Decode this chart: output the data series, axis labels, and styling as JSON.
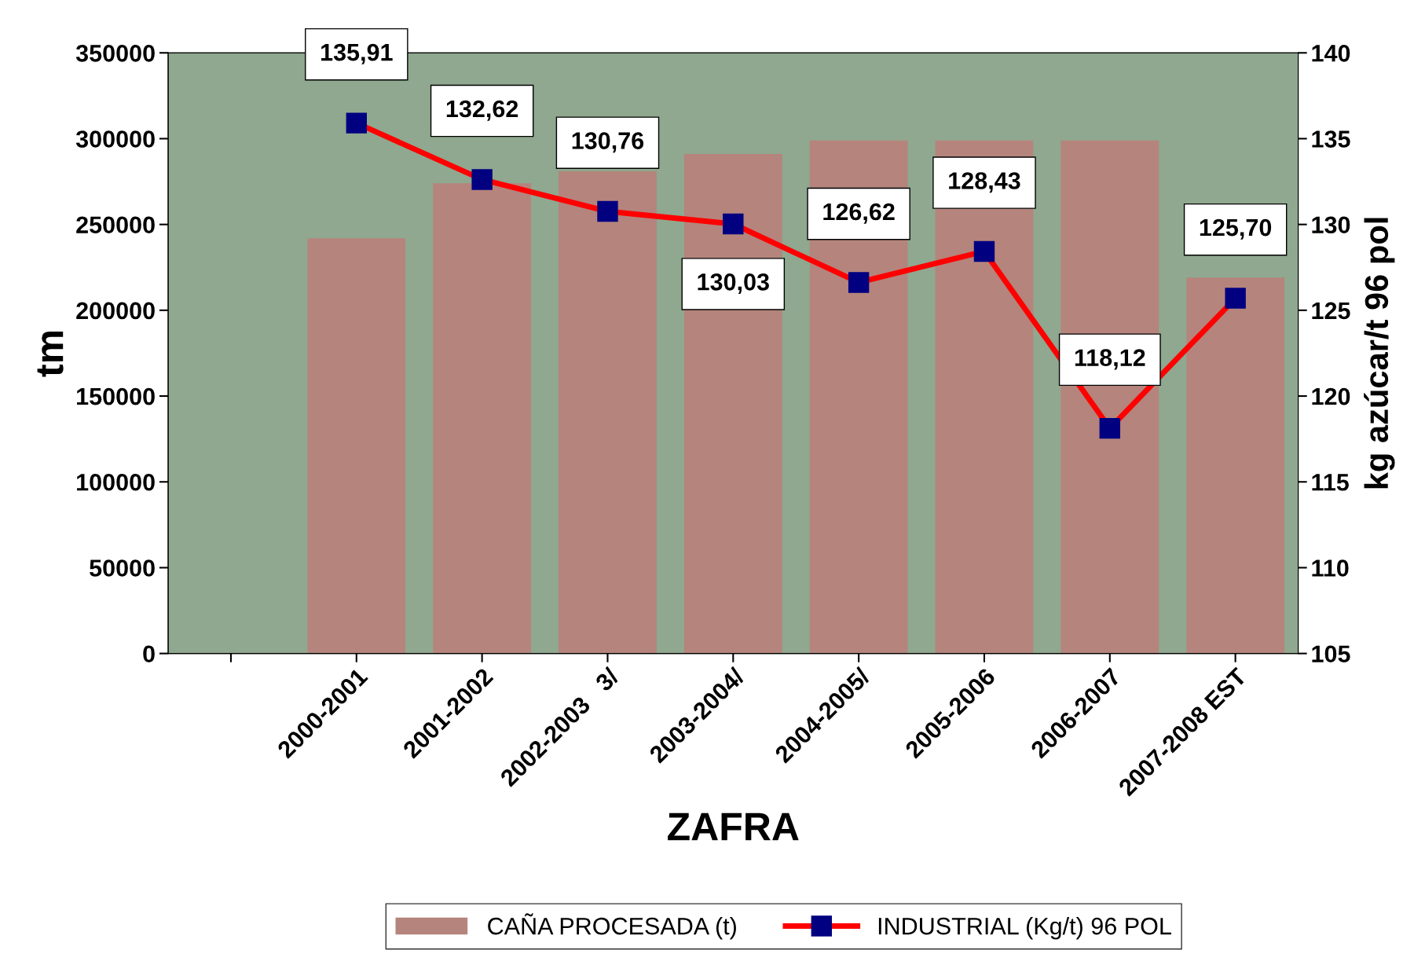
{
  "chart_data": {
    "type": "bar",
    "xlabel": "ZAFRA",
    "ylabel": "tm",
    "y2label": "kg azúcar/t 96 pol",
    "categories": [
      null,
      "2000-2001",
      "2001-2002",
      "2002-2003   3/",
      "2003-2004/",
      "2004-2005/",
      "2005-2006",
      "2006-2007",
      "2007-2008 EST"
    ],
    "series": [
      {
        "name": "CAÑA PROCESADA (t)",
        "color": "#b5847c",
        "values": [
          null,
          242000,
          274000,
          281000,
          291000,
          299000,
          299000,
          299000,
          219000
        ]
      },
      {
        "name": "INDUSTRIAL (Kg/t) 96 POL",
        "type": "line",
        "axis": "y2",
        "color": "#ff0000",
        "marker": "square",
        "line_style": "solid",
        "values": [
          null,
          135.91,
          132.62,
          130.76,
          130.03,
          126.62,
          128.43,
          118.12,
          125.7
        ],
        "value_labels": [
          null,
          "135,91",
          "132,62",
          "130,76",
          "130,03",
          "126,62",
          "128,43",
          "118,12",
          "125,70"
        ]
      }
    ],
    "ylim": [
      0,
      350000
    ],
    "yticks": [
      0,
      50000,
      100000,
      150000,
      200000,
      250000,
      300000,
      350000
    ],
    "y2lim": [
      105,
      140
    ],
    "y2ticks": [
      105,
      110,
      115,
      120,
      125,
      130,
      135,
      140
    ],
    "grid": false,
    "legend": "bottom"
  }
}
